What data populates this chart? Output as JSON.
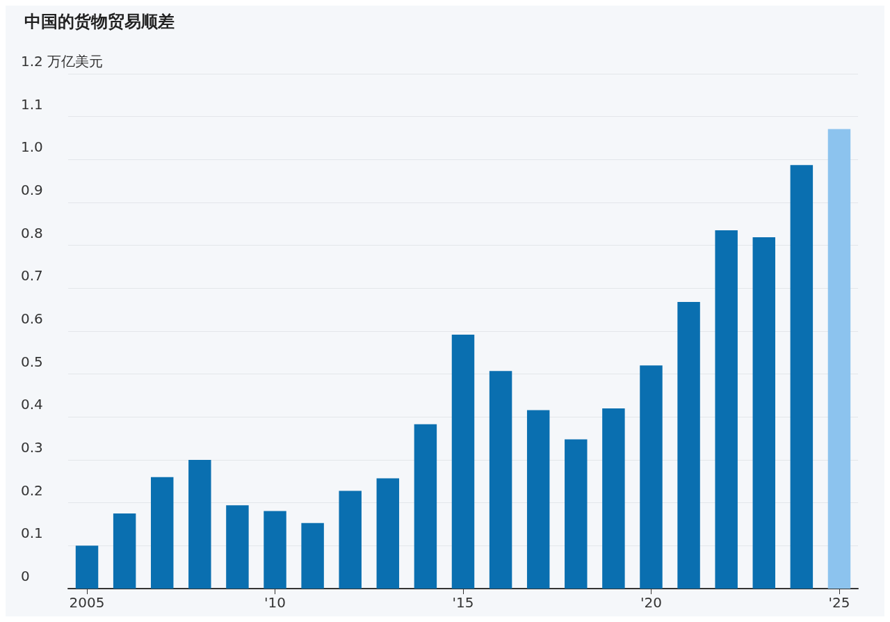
{
  "chart_data": {
    "type": "bar",
    "title": "中国的货物贸易顺差",
    "categories": [
      "2005",
      null,
      null,
      null,
      null,
      "'10",
      null,
      null,
      null,
      null,
      "'15",
      null,
      null,
      null,
      null,
      "'20",
      null,
      null,
      null,
      null,
      "'25"
    ],
    "values": [
      0.1,
      0.175,
      0.26,
      0.3,
      0.194,
      0.181,
      0.153,
      0.228,
      0.257,
      0.383,
      0.592,
      0.507,
      0.416,
      0.348,
      0.42,
      0.52,
      0.668,
      0.835,
      0.819,
      0.987,
      1.071
    ],
    "colors": [
      "#0a6fb0",
      "#0a6fb0",
      "#0a6fb0",
      "#0a6fb0",
      "#0a6fb0",
      "#0a6fb0",
      "#0a6fb0",
      "#0a6fb0",
      "#0a6fb0",
      "#0a6fb0",
      "#0a6fb0",
      "#0a6fb0",
      "#0a6fb0",
      "#0a6fb0",
      "#0a6fb0",
      "#0a6fb0",
      "#0a6fb0",
      "#0a6fb0",
      "#0a6fb0",
      "#0a6fb0",
      "#8cc3ee"
    ],
    "ylim": [
      0,
      1.2
    ],
    "yticks": [
      0,
      0.1,
      0.2,
      0.3,
      0.4,
      0.5,
      0.6,
      0.7,
      0.8,
      0.9,
      {
        "value": 1.0,
        "label": "1.0"
      },
      1.1,
      {
        "value": 1.2,
        "label": "1.2 万亿美元"
      }
    ],
    "grid": "y"
  }
}
